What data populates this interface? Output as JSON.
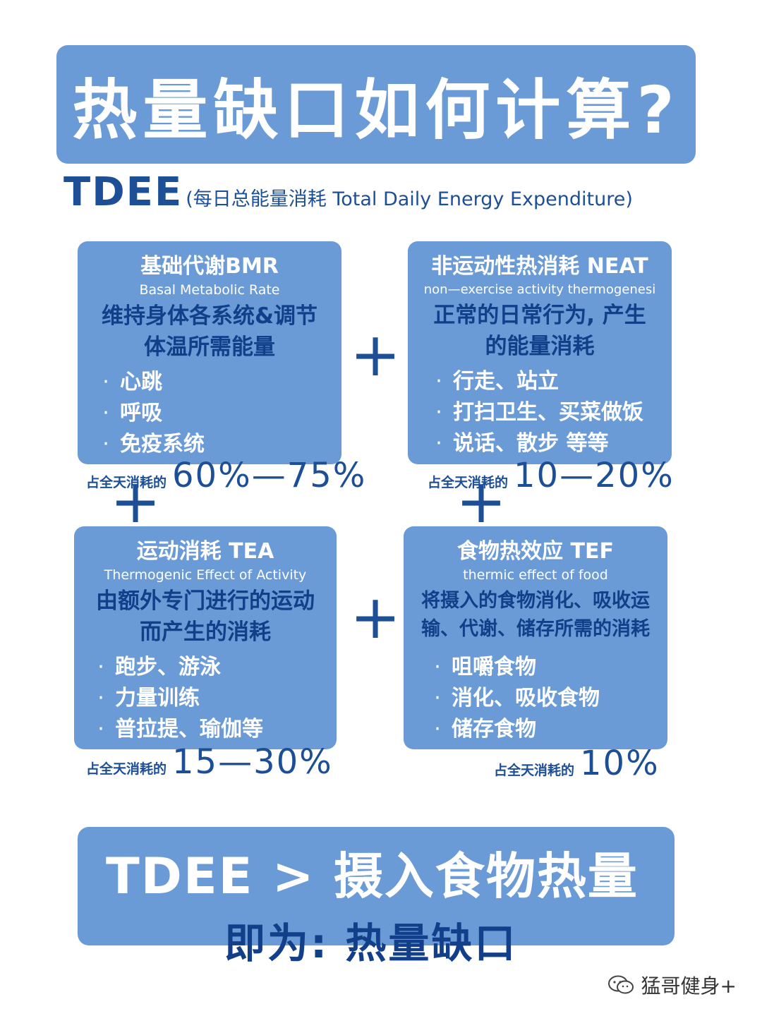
{
  "title": "热量缺口如何计算?",
  "tdee": {
    "abbr": "TDEE",
    "full": "(每日总能量消耗 Total Daily Energy Expenditure)"
  },
  "cards": {
    "bmr": {
      "title": "基础代谢BMR",
      "subtitle": "Basal Metabolic Rate",
      "desc_line1": "维持身体各系统&调节",
      "desc_line2": "体温所需能量",
      "bullets": [
        "心跳",
        "呼吸",
        "免疫系统"
      ],
      "share_label": "占全天消耗的",
      "share_value": "60%—75%"
    },
    "neat": {
      "title": "非运动性热消耗 NEAT",
      "subtitle": "non—exercise activity thermogenesi",
      "desc_line1": "正常的日常行为, 产生",
      "desc_line2": "的能量消耗",
      "bullets": [
        "行走、站立",
        "打扫卫生、买菜做饭",
        "说话、散步 等等"
      ],
      "share_label": "占全天消耗的",
      "share_value": "10—20%"
    },
    "tea": {
      "title": "运动消耗 TEA",
      "subtitle": "Thermogenic Effect of Activity",
      "desc_line1": "由额外专门进行的运动",
      "desc_line2": "而产生的消耗",
      "bullets": [
        "跑步、游泳",
        "力量训练",
        "普拉提、瑜伽等"
      ],
      "share_label": "占全天消耗的",
      "share_value": "15—30%"
    },
    "tef": {
      "title": "食物热效应 TEF",
      "subtitle": "thermic effect of food",
      "desc_line1": "将摄入的食物消化、吸收运",
      "desc_line2": "输、代谢、储存所需的消耗",
      "bullets": [
        "咀嚼食物",
        "消化、吸收食物",
        "储存食物"
      ],
      "share_label": "占全天消耗的",
      "share_value": "10%"
    }
  },
  "plus_sign": "+",
  "bullet_glyph": "·",
  "conclusion": {
    "main": "TDEE > 摄入食物热量",
    "sub": "即为: 热量缺口"
  },
  "watermark": {
    "icon": "wechat-icon",
    "text": "猛哥健身+"
  },
  "colors": {
    "panel": "#6a9bd6",
    "text_dark": "#1d4f96",
    "white": "#ffffff"
  }
}
